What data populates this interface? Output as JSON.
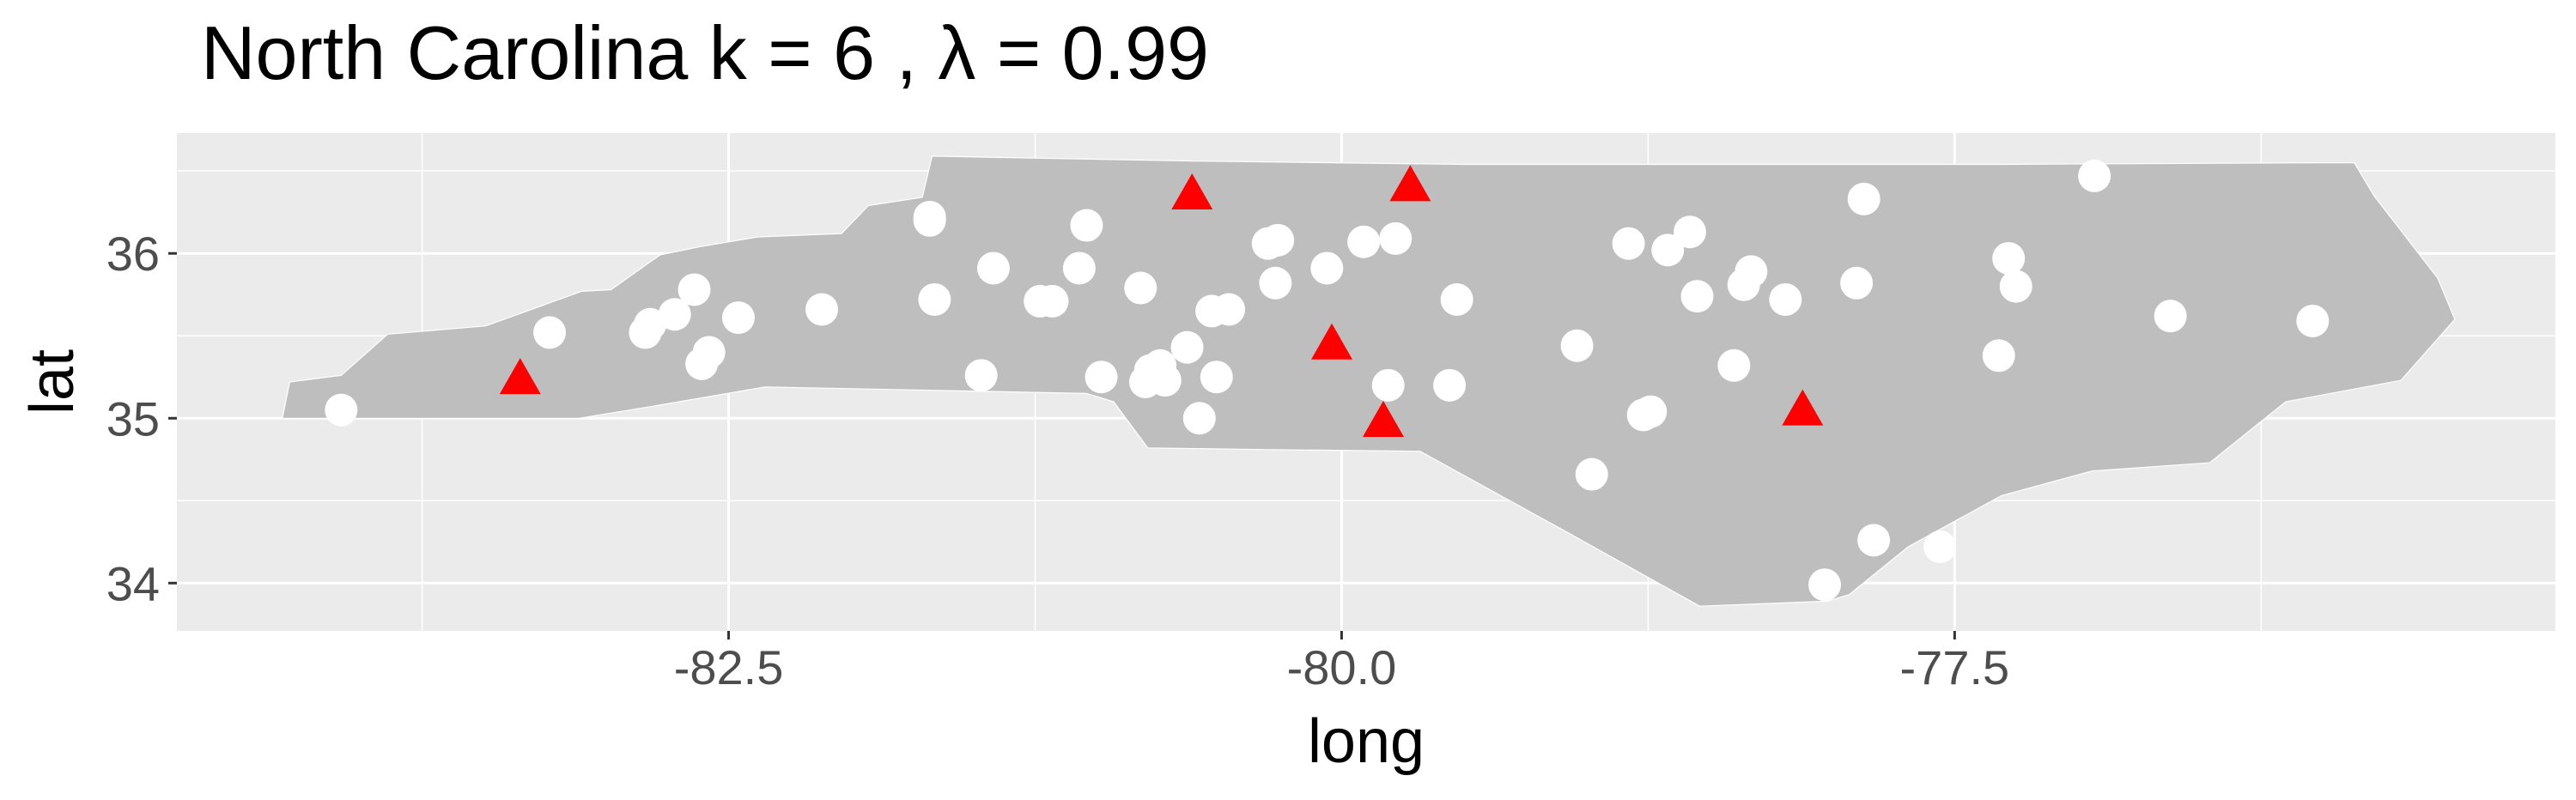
{
  "chart_data": {
    "type": "scatter",
    "title": "North Carolina  k =  6 ,  λ  =  0.99",
    "xlabel": "long",
    "ylabel": "lat",
    "xlim": [
      -84.75,
      -75.05
    ],
    "ylim": [
      33.71,
      36.73
    ],
    "x_ticks": [
      -82.5,
      -80.0,
      -77.5
    ],
    "x_tick_labels": [
      "-82.5",
      "-80.0",
      "-77.5"
    ],
    "y_ticks": [
      34,
      35,
      36
    ],
    "y_tick_labels": [
      "34",
      "35",
      "36"
    ],
    "grid": true,
    "legend": "none",
    "colors": {
      "panel_background": "#ebebeb",
      "grid_major": "#ffffff",
      "state_fill": "#bebebe",
      "state_border": "#ffffff",
      "points": "#ffffff",
      "centers": "#ff0000"
    },
    "map_outline": [
      [
        -84.32,
        35.0
      ],
      [
        -84.29,
        35.22
      ],
      [
        -84.08,
        35.26
      ],
      [
        -83.89,
        35.51
      ],
      [
        -83.49,
        35.56
      ],
      [
        -83.1,
        35.77
      ],
      [
        -82.98,
        35.78
      ],
      [
        -82.78,
        35.99
      ],
      [
        -82.62,
        36.04
      ],
      [
        -82.38,
        36.1
      ],
      [
        -82.04,
        36.12
      ],
      [
        -81.93,
        36.29
      ],
      [
        -81.71,
        36.34
      ],
      [
        -81.67,
        36.59
      ],
      [
        -80.6,
        36.56
      ],
      [
        -79.5,
        36.54
      ],
      [
        -78.5,
        36.54
      ],
      [
        -77.3,
        36.54
      ],
      [
        -76.03,
        36.55
      ],
      [
        -75.87,
        36.55
      ],
      [
        -75.79,
        36.35
      ],
      [
        -75.53,
        35.85
      ],
      [
        -75.46,
        35.6
      ],
      [
        -75.68,
        35.23
      ],
      [
        -76.15,
        35.1
      ],
      [
        -76.46,
        34.73
      ],
      [
        -76.94,
        34.68
      ],
      [
        -77.31,
        34.53
      ],
      [
        -77.69,
        34.22
      ],
      [
        -77.93,
        33.93
      ],
      [
        -78.02,
        33.89
      ],
      [
        -78.54,
        33.86
      ],
      [
        -79.07,
        34.3
      ],
      [
        -79.68,
        34.8
      ],
      [
        -80.32,
        34.81
      ],
      [
        -80.79,
        34.82
      ],
      [
        -80.93,
        35.1
      ],
      [
        -81.04,
        35.15
      ],
      [
        -81.36,
        35.16
      ],
      [
        -82.35,
        35.19
      ],
      [
        -82.78,
        35.08
      ],
      [
        -83.11,
        35.0
      ],
      [
        -84.32,
        35.0
      ]
    ],
    "series": [
      {
        "shape": "circle",
        "x": [
          -84.08,
          -83.23,
          -82.84,
          -82.72,
          -82.82,
          -82.64,
          -82.58,
          -82.61,
          -82.46,
          -82.12,
          -81.68,
          -81.66,
          -81.68,
          -81.47,
          -81.42,
          -81.23,
          -81.18,
          -81.04,
          -81.07,
          -80.98,
          -80.82,
          -80.78,
          -80.74,
          -80.8,
          -80.72,
          -80.63,
          -80.58,
          -80.53,
          -80.51,
          -80.46,
          -80.3,
          -80.27,
          -80.26,
          -80.06,
          -79.91,
          -79.81,
          -79.78,
          -79.53,
          -79.56,
          -79.04,
          -78.98,
          -78.83,
          -78.77,
          -78.74,
          -78.67,
          -78.58,
          -78.55,
          -78.4,
          -78.36,
          -78.33,
          -78.19,
          -78.03,
          -77.9,
          -77.87,
          -77.83,
          -77.56,
          -77.32,
          -77.28,
          -77.25,
          -76.93,
          -76.62,
          -76.04
        ],
        "y": [
          35.05,
          35.52,
          35.52,
          35.63,
          35.57,
          35.78,
          35.4,
          35.33,
          35.61,
          35.66,
          36.2,
          35.72,
          36.22,
          35.26,
          35.91,
          35.71,
          35.71,
          36.17,
          35.91,
          35.25,
          35.79,
          35.29,
          35.32,
          35.22,
          35.23,
          35.43,
          35.0,
          35.65,
          35.25,
          35.66,
          36.06,
          35.82,
          36.08,
          35.91,
          36.07,
          35.2,
          36.09,
          35.72,
          35.2,
          35.44,
          34.66,
          36.06,
          35.02,
          35.04,
          36.02,
          36.13,
          35.74,
          35.32,
          35.81,
          35.89,
          35.72,
          33.99,
          35.82,
          36.33,
          34.26,
          34.22,
          35.38,
          35.97,
          35.8,
          36.47,
          35.62,
          35.59
        ]
      },
      {
        "shape": "triangle",
        "x": [
          -83.35,
          -80.61,
          -80.04,
          -79.72,
          -79.83,
          -78.12
        ],
        "y": [
          35.23,
          36.35,
          35.44,
          36.4,
          34.97,
          35.04
        ]
      }
    ]
  }
}
